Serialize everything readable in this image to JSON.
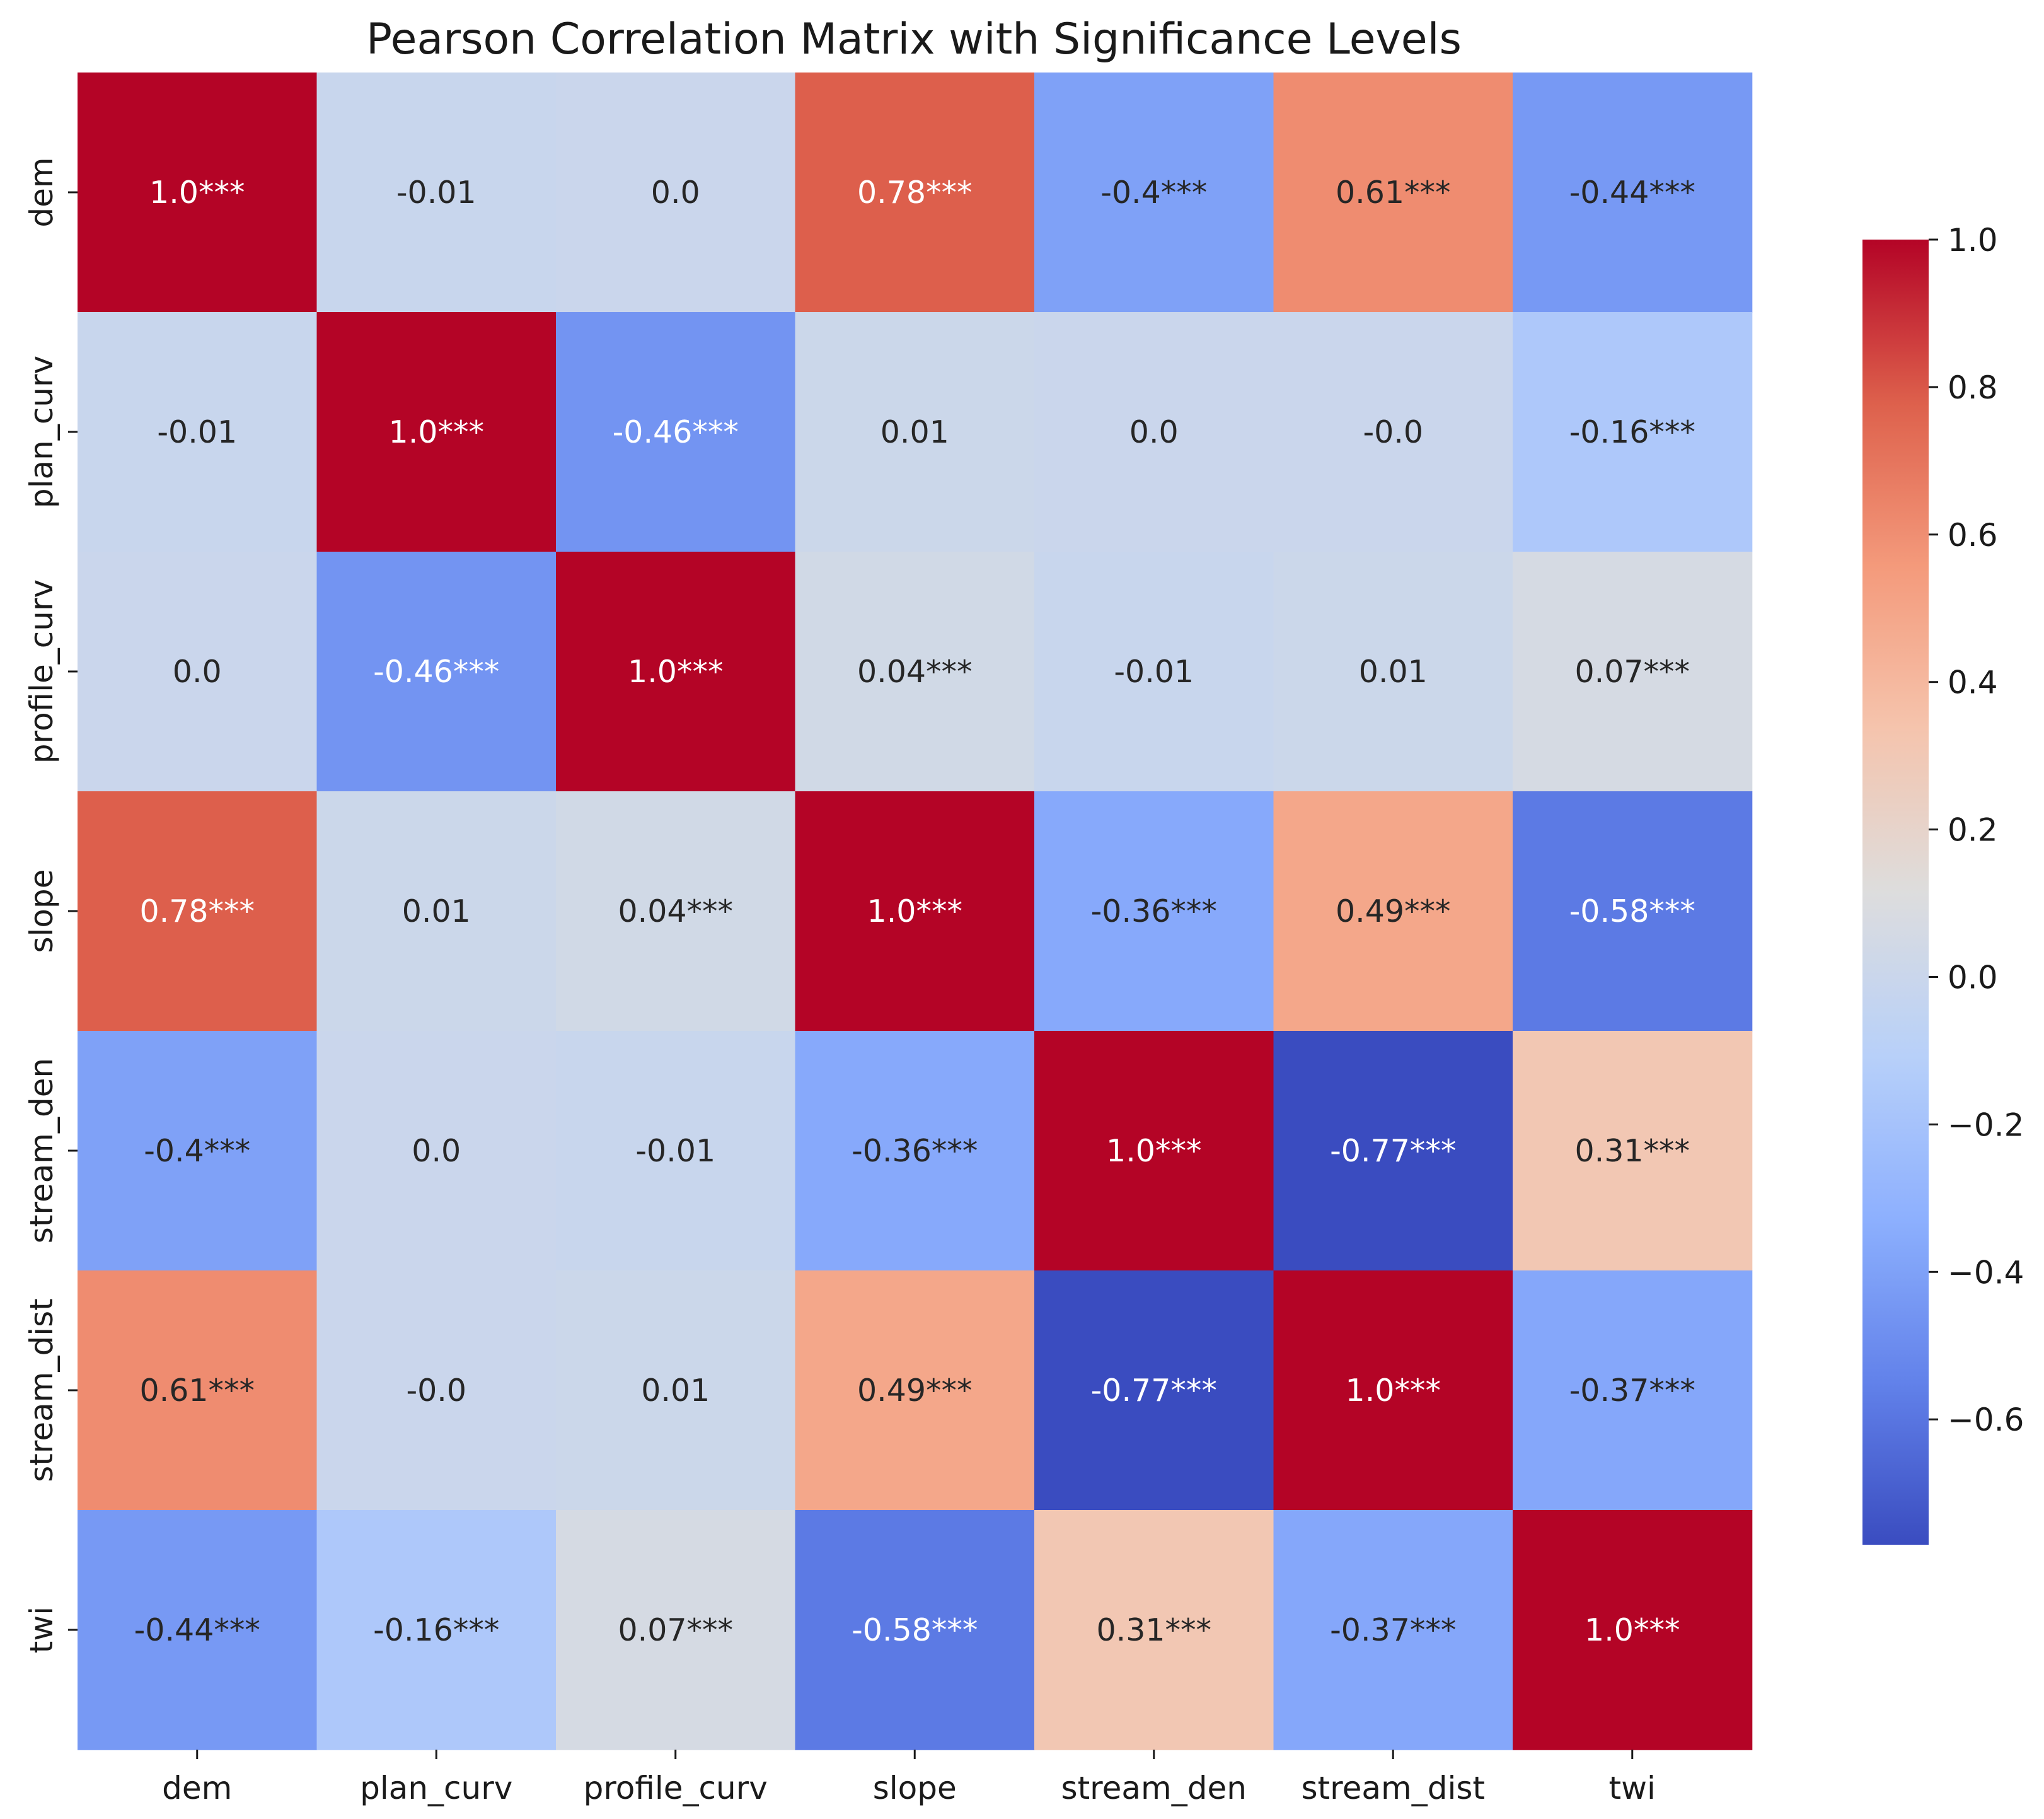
{
  "chart_data": {
    "type": "heatmap",
    "title": "Pearson Correlation Matrix with Significance Levels",
    "variables": [
      "dem",
      "plan_curv",
      "profile_curv",
      "slope",
      "stream_den",
      "stream_dist",
      "twi"
    ],
    "values": [
      [
        1.0,
        -0.01,
        0.0,
        0.78,
        -0.4,
        0.61,
        -0.44
      ],
      [
        -0.01,
        1.0,
        -0.46,
        0.01,
        0.0,
        -0.0,
        -0.16
      ],
      [
        0.0,
        -0.46,
        1.0,
        0.04,
        -0.01,
        0.01,
        0.07
      ],
      [
        0.78,
        0.01,
        0.04,
        1.0,
        -0.36,
        0.49,
        -0.58
      ],
      [
        -0.4,
        0.0,
        -0.01,
        -0.36,
        1.0,
        -0.77,
        0.31
      ],
      [
        0.61,
        -0.0,
        0.01,
        0.49,
        -0.77,
        1.0,
        -0.37
      ],
      [
        -0.44,
        -0.16,
        0.07,
        -0.58,
        0.31,
        -0.37,
        1.0
      ]
    ],
    "annotations": [
      [
        "1.0***",
        "-0.01",
        "0.0",
        "0.78***",
        "-0.4***",
        "0.61***",
        "-0.44***"
      ],
      [
        "-0.01",
        "1.0***",
        "-0.46***",
        "0.01",
        "0.0",
        "-0.0",
        "-0.16***"
      ],
      [
        "0.0",
        "-0.46***",
        "1.0***",
        "0.04***",
        "-0.01",
        "0.01",
        "0.07***"
      ],
      [
        "0.78***",
        "0.01",
        "0.04***",
        "1.0***",
        "-0.36***",
        "0.49***",
        "-0.58***"
      ],
      [
        "-0.4***",
        "0.0",
        "-0.01",
        "-0.36***",
        "1.0***",
        "-0.77***",
        "0.31***"
      ],
      [
        "0.61***",
        "-0.0",
        "0.01",
        "0.49***",
        "-0.77***",
        "1.0***",
        "-0.37***"
      ],
      [
        "-0.44***",
        "-0.16***",
        "0.07***",
        "-0.58***",
        "0.31***",
        "-0.37***",
        "1.0***"
      ]
    ],
    "colormap": "coolwarm",
    "vmin": -0.77,
    "vmax": 1.0,
    "colorbar_ticks": [
      1.0,
      0.8,
      0.6,
      0.4,
      0.2,
      0.0,
      -0.2,
      -0.4,
      -0.6
    ],
    "colorbar_tick_labels": [
      "1.0",
      "0.8",
      "0.6",
      "0.4",
      "0.2",
      "0.0",
      "−0.2",
      "−0.4",
      "−0.6"
    ],
    "xlabel": "",
    "ylabel": ""
  }
}
